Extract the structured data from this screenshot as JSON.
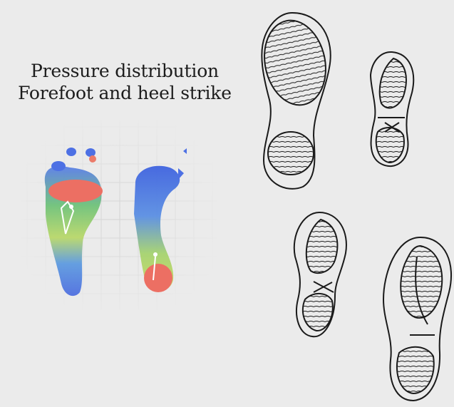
{
  "title": {
    "line1": "Pressure distribution",
    "line2": "Forefoot and heel strike"
  },
  "colors": {
    "background": "#ebebeb",
    "grid": "#d2d2d2",
    "high_pressure": "#ec6f63",
    "mid_pressure": "#b7d96a",
    "low_pressure": "#4d78e6",
    "outline": "#1a1a1a"
  },
  "illustrations": {
    "left_panel": "footprint pressure heatmap, left foot forefoot strike, right foot heel strike",
    "right_panel": "four sketched shoe sole outlines with tread patterns"
  }
}
